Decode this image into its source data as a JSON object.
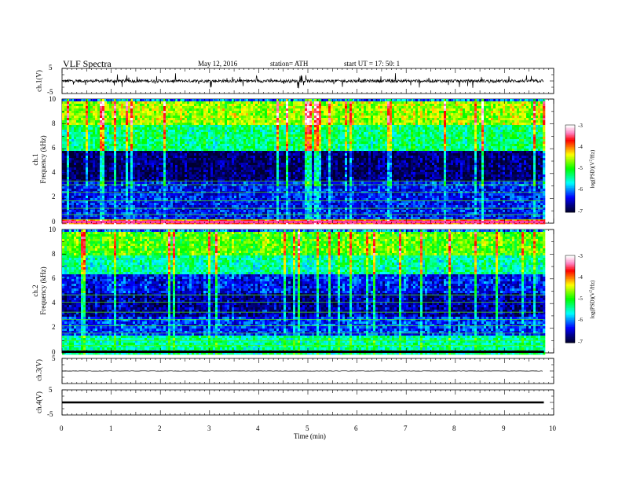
{
  "header": {
    "title": "VLF  Spectra",
    "date": "May 12, 2016",
    "station": "station= ATH",
    "start": "start  UT  =    17: 50: 1"
  },
  "chart_data": [
    {
      "type": "line",
      "panel": "ch1-waveform",
      "ylabel": "ch.1(V)",
      "ylim": [
        -5,
        5
      ],
      "yticklabels": [
        "5",
        "-5"
      ],
      "xlim": [
        0,
        10
      ],
      "description_series": {
        "baseline_v": 0.0,
        "spikes_v": [
          -2.5,
          2.5
        ],
        "x_end": 9.8
      }
    },
    {
      "type": "heatmap",
      "panel": "ch1-spectrogram",
      "ylabel": "ch.1\nFrequency (kHz)",
      "ylim": [
        0,
        10
      ],
      "yticklabels": [
        "0",
        "2",
        "4",
        "6",
        "8",
        "10"
      ],
      "xlim": [
        0,
        9.8
      ],
      "color_scale": {
        "label": "log(PSD)(V^2/Hz)",
        "range": [
          -7,
          -3
        ],
        "ticklabels": [
          "-7",
          "-6",
          "-5",
          "-4",
          "-3"
        ]
      },
      "bands_khz": [
        {
          "f": [
            0,
            0.5
          ],
          "log_psd": -3.8
        },
        {
          "f": [
            0.5,
            3.5
          ],
          "log_psd": -6.3
        },
        {
          "f": [
            3.5,
            6.0
          ],
          "log_psd": -6.8
        },
        {
          "f": [
            6.0,
            8.0
          ],
          "log_psd": -5.3
        },
        {
          "f": [
            8.0,
            10.0
          ],
          "log_psd": -4.6
        }
      ]
    },
    {
      "type": "heatmap",
      "panel": "ch2-spectrogram",
      "ylabel": "ch.2\nFrequency (kHz)",
      "ylim": [
        0,
        10
      ],
      "yticklabels": [
        "0",
        "2",
        "4",
        "6",
        "8",
        "10"
      ],
      "xlim": [
        0,
        9.8
      ],
      "color_scale": {
        "label": "log(PSD)(V^2/Hz)",
        "range": [
          -7,
          -3
        ],
        "ticklabels": [
          "-7",
          "-6",
          "-5",
          "-4",
          "-3"
        ]
      },
      "bands_khz": [
        {
          "f": [
            0,
            1.5
          ],
          "log_psd": -5.4
        },
        {
          "f": [
            1.5,
            3.0
          ],
          "log_psd": -6.2
        },
        {
          "f": [
            3.0,
            5.0
          ],
          "log_psd": -6.6
        },
        {
          "f": [
            5.0,
            6.5
          ],
          "log_psd": -6.3
        },
        {
          "f": [
            6.5,
            8.0
          ],
          "log_psd": -5.4
        },
        {
          "f": [
            8.0,
            10.0
          ],
          "log_psd": -4.8
        }
      ]
    },
    {
      "type": "line",
      "panel": "ch3-waveform",
      "ylabel": "ch.3(V)",
      "ylim": [
        -5,
        5
      ],
      "yticklabels": [
        "5"
      ],
      "xlim": [
        0,
        10
      ],
      "description_series": {
        "baseline_v": 0.0,
        "x_end": 9.8
      }
    },
    {
      "type": "line",
      "panel": "ch4-waveform",
      "ylabel": "ch.4(V)",
      "ylim": [
        -5,
        5
      ],
      "yticklabels": [
        "5",
        "-5"
      ],
      "xlim": [
        0,
        10
      ],
      "xlabel": "Time  (min)",
      "xticklabels": [
        "0",
        "1",
        "2",
        "3",
        "4",
        "5",
        "6",
        "7",
        "8",
        "9",
        "10"
      ],
      "description_series": {
        "baseline_v": 0.0,
        "x_end": 9.8
      }
    }
  ],
  "colors": {
    "colormap": [
      "#000030",
      "#00008b",
      "#0000ff",
      "#0080ff",
      "#00ffff",
      "#00ff80",
      "#00ff00",
      "#80ff00",
      "#ffff00",
      "#ff8000",
      "#ff0000",
      "#ff80c0",
      "#ffffff"
    ],
    "axis": "#000000",
    "trace": "#000000"
  }
}
